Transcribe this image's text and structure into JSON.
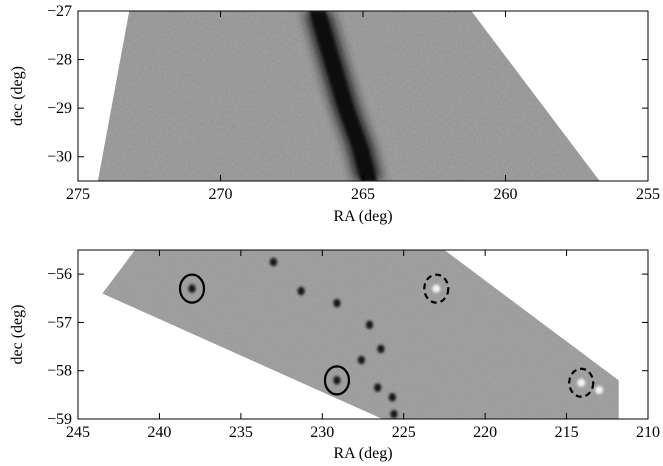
{
  "chart_data": [
    {
      "type": "heatmap",
      "xlabel": "RA (deg)",
      "ylabel": "dec (deg)",
      "xlim": [
        275,
        255
      ],
      "ylim": [
        -30.5,
        -27
      ],
      "x_reversed": true,
      "xticks": [
        {
          "value": 275,
          "label": "275"
        },
        {
          "value": 270,
          "label": "270"
        },
        {
          "value": 265,
          "label": "265"
        },
        {
          "value": 260,
          "label": "260"
        },
        {
          "value": 255,
          "label": "255"
        }
      ],
      "yticks": [
        {
          "value": -27,
          "label": "−27"
        },
        {
          "value": -28,
          "label": "−28"
        },
        {
          "value": -29,
          "label": "−29"
        },
        {
          "value": -30,
          "label": "−30"
        }
      ],
      "colormap": "grayscale",
      "coverage_region": [
        {
          "ra": 273.2,
          "dec": -27.0
        },
        {
          "ra": 261.2,
          "dec": -27.0
        },
        {
          "ra": 256.7,
          "dec": -30.5
        },
        {
          "ra": 274.3,
          "dec": -30.5
        }
      ],
      "dark_features": [
        {
          "name": "galactic-plane-band",
          "points": [
            {
              "ra": 266.6,
              "dec": -27.0
            },
            {
              "ra": 266.1,
              "dec": -28.0
            },
            {
              "ra": 265.6,
              "dec": -29.0
            },
            {
              "ra": 265.1,
              "dec": -29.8
            },
            {
              "ra": 264.8,
              "dec": -30.5
            }
          ]
        }
      ],
      "markers": []
    },
    {
      "type": "heatmap",
      "xlabel": "RA (deg)",
      "ylabel": "dec (deg)",
      "xlim": [
        245,
        210
      ],
      "ylim": [
        -59,
        -55.5
      ],
      "x_reversed": true,
      "xticks": [
        {
          "value": 245,
          "label": "245"
        },
        {
          "value": 240,
          "label": "240"
        },
        {
          "value": 235,
          "label": "235"
        },
        {
          "value": 230,
          "label": "230"
        },
        {
          "value": 225,
          "label": "225"
        },
        {
          "value": 220,
          "label": "220"
        },
        {
          "value": 215,
          "label": "215"
        },
        {
          "value": 210,
          "label": "210"
        }
      ],
      "yticks": [
        {
          "value": -56,
          "label": "−56"
        },
        {
          "value": -57,
          "label": "−57"
        },
        {
          "value": -58,
          "label": "−58"
        },
        {
          "value": -59,
          "label": "−59"
        }
      ],
      "colormap": "grayscale",
      "coverage_region": [
        {
          "ra": 241.5,
          "dec": -55.5
        },
        {
          "ra": 222.5,
          "dec": -55.5
        },
        {
          "ra": 211.8,
          "dec": -58.2
        },
        {
          "ra": 211.8,
          "dec": -59.0
        },
        {
          "ra": 226.3,
          "dec": -59.0
        },
        {
          "ra": 243.5,
          "dec": -56.4
        }
      ],
      "sources": [
        {
          "ra": 238.0,
          "dec": -56.3,
          "brightness": "dark"
        },
        {
          "ra": 233.0,
          "dec": -55.75,
          "brightness": "dark"
        },
        {
          "ra": 231.3,
          "dec": -56.35,
          "brightness": "dark"
        },
        {
          "ra": 229.1,
          "dec": -56.6,
          "brightness": "dark"
        },
        {
          "ra": 227.1,
          "dec": -57.05,
          "brightness": "dark"
        },
        {
          "ra": 229.1,
          "dec": -58.2,
          "brightness": "dark"
        },
        {
          "ra": 227.6,
          "dec": -57.78,
          "brightness": "dark"
        },
        {
          "ra": 226.4,
          "dec": -57.55,
          "brightness": "dark"
        },
        {
          "ra": 226.6,
          "dec": -58.35,
          "brightness": "dark"
        },
        {
          "ra": 225.7,
          "dec": -58.55,
          "brightness": "dark"
        },
        {
          "ra": 225.6,
          "dec": -58.9,
          "brightness": "dark"
        },
        {
          "ra": 223.0,
          "dec": -56.3,
          "brightness": "bright"
        },
        {
          "ra": 214.1,
          "dec": -58.25,
          "brightness": "bright"
        },
        {
          "ra": 213.0,
          "dec": -58.4,
          "brightness": "bright"
        }
      ],
      "markers": [
        {
          "ra": 238.0,
          "dec": -56.3,
          "style": "solid"
        },
        {
          "ra": 229.1,
          "dec": -58.2,
          "style": "solid"
        },
        {
          "ra": 223.0,
          "dec": -56.3,
          "style": "dashed"
        },
        {
          "ra": 214.1,
          "dec": -58.25,
          "style": "dashed"
        }
      ]
    }
  ]
}
